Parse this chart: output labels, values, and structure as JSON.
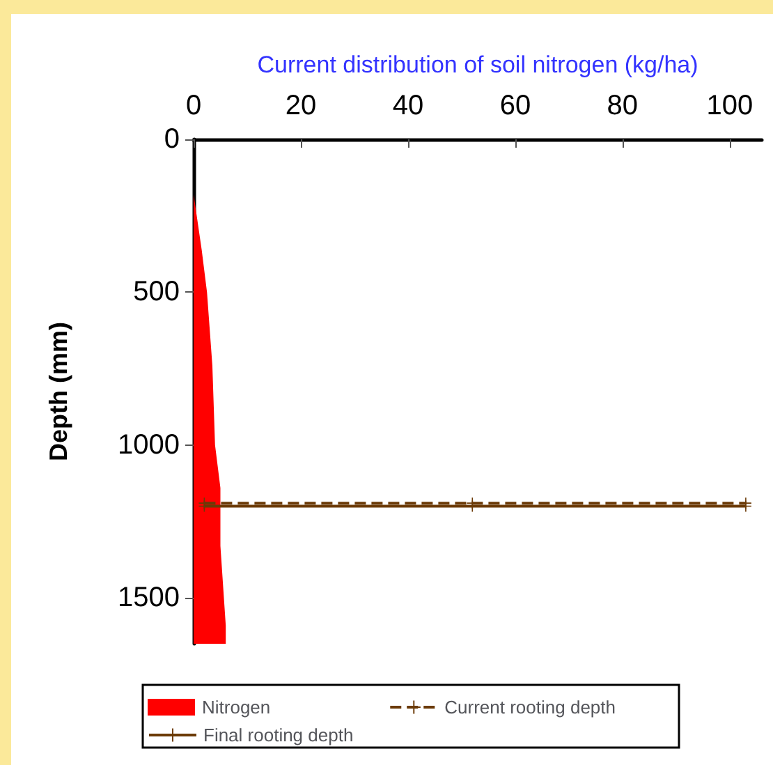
{
  "chart_data": {
    "type": "area",
    "orientation": "horizontal",
    "xlabel": "Current distribution of soil nitrogen (kg/ha)",
    "ylabel": "Depth (mm)",
    "xlim": [
      0,
      106
    ],
    "xticks": [
      0,
      20,
      40,
      60,
      80,
      100
    ],
    "ylim": [
      1650,
      0
    ],
    "yticks": [
      0,
      500,
      1000,
      1500
    ],
    "grid": false,
    "legend": "bottom",
    "series": [
      {
        "name": "Nitrogen",
        "color": "#ff0000",
        "x": [
          180,
          240,
          360,
          500,
          740,
          1000,
          1140,
          1330,
          1590,
          1650
        ],
        "values": [
          0,
          0.5,
          1.5,
          2.5,
          3.5,
          4,
          5,
          5,
          6,
          6
        ]
      },
      {
        "name": "Current rooting depth",
        "type": "line",
        "color": "#6b3a07",
        "line_style": "dashed",
        "marker": "cross",
        "x": [
          1190,
          1190,
          1190
        ],
        "values": [
          2,
          52,
          103
        ]
      },
      {
        "name": "Final rooting depth",
        "type": "line",
        "color": "#6b3a07",
        "line_style": "solid",
        "marker": "cross",
        "x": [
          1200,
          1200,
          1200
        ],
        "values": [
          2,
          52,
          103
        ]
      }
    ]
  }
}
